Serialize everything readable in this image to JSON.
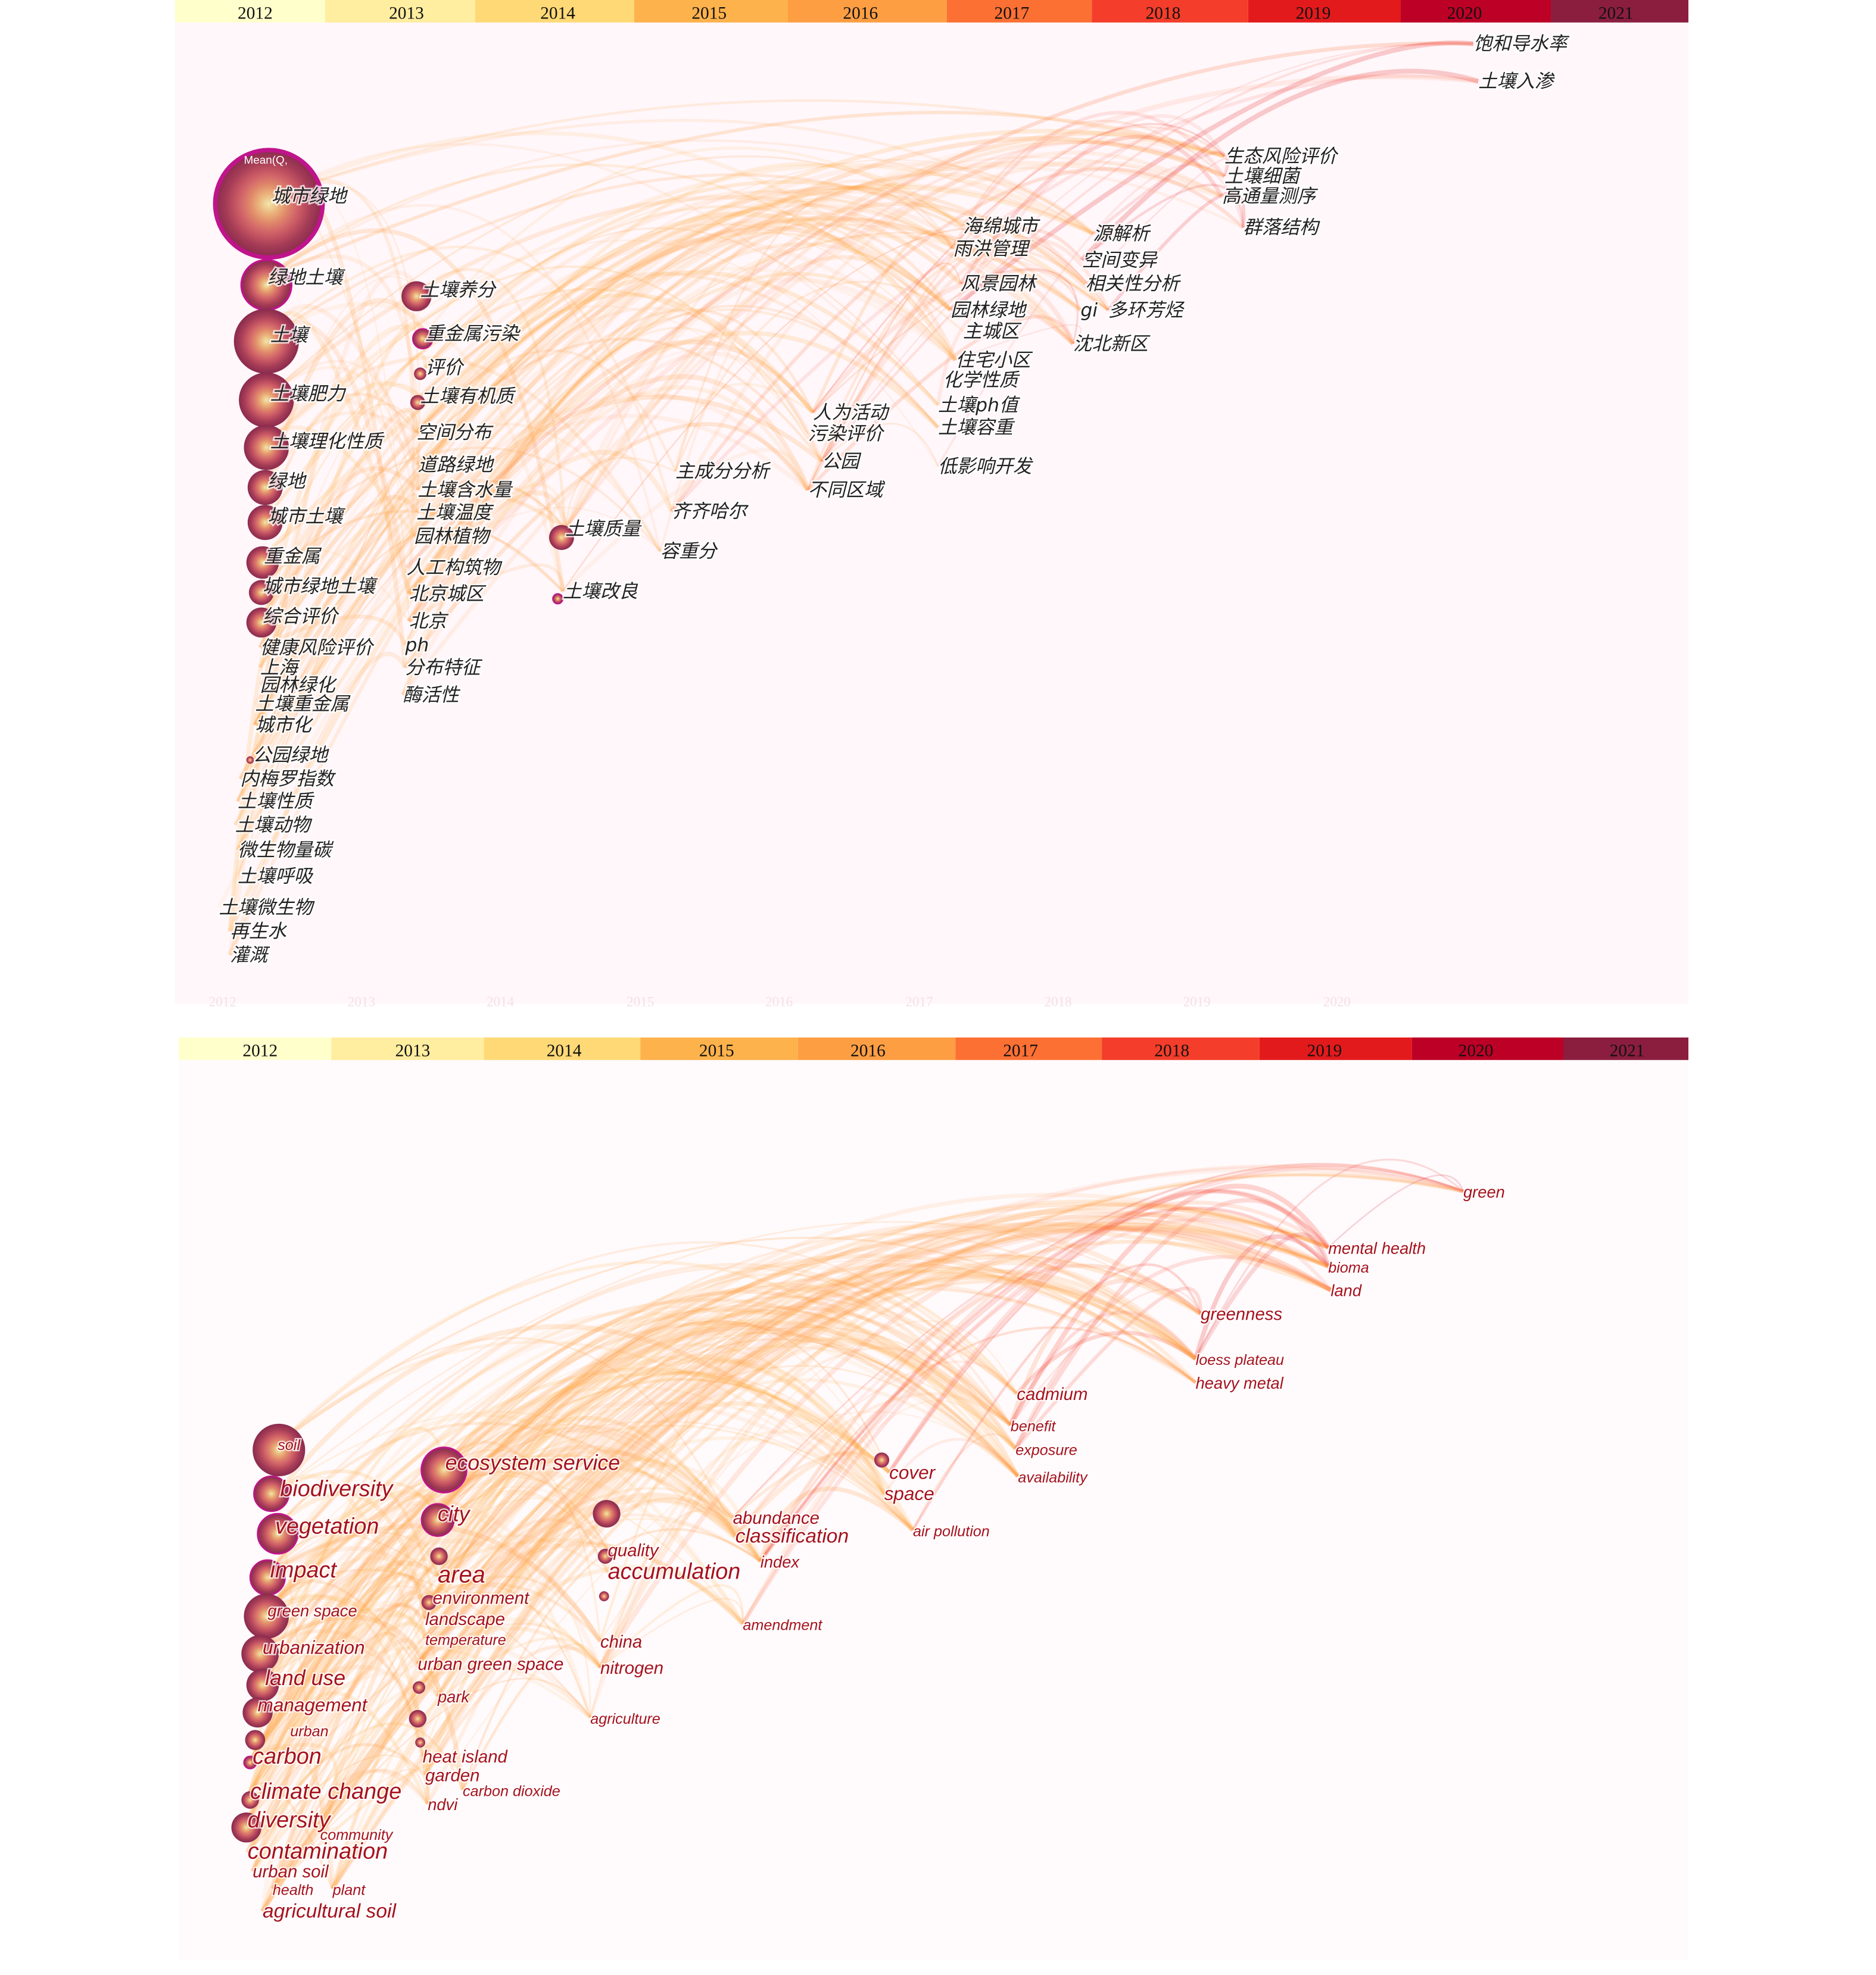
{
  "colors": {
    "years": [
      "#FFFFCC",
      "#FFEDA0",
      "#FED976",
      "#FEB24C",
      "#FD9E43",
      "#FC7034",
      "#F43D2A",
      "#E31A1C",
      "#BD0026",
      "#8B1E3F"
    ],
    "node_ring": "#c0148c",
    "node_core": "#f2e6a8",
    "english_label": "#a5121e",
    "link": "#d9a3b2"
  },
  "top_timeline": {
    "years": [
      "2012",
      "2013",
      "2014",
      "2015",
      "2016",
      "2017",
      "2018",
      "2019",
      "2020",
      "2021"
    ]
  },
  "bottom_timeline": {
    "years": [
      "2012",
      "2013",
      "2014",
      "2015",
      "2016",
      "2017",
      "2018",
      "2019",
      "2020",
      "2021"
    ]
  },
  "top_panel": {
    "legend_text": "Mean(Q,",
    "watermark_years": [
      "2012",
      "2013",
      "2014",
      "2015",
      "2016",
      "2017",
      "2018",
      "2019",
      "2020"
    ],
    "labels": [
      "城市绿地",
      "绿地土壤",
      "土壤",
      "土壤肥力",
      "土壤理化性质",
      "绿地",
      "城市土壤",
      "重金属",
      "城市绿地土壤",
      "综合评价",
      "健康风险评价",
      "上海",
      "园林绿化",
      "土壤重金属",
      "城市化",
      "公园绿地",
      "内梅罗指数",
      "土壤性质",
      "土壤动物",
      "微生物量碳",
      "土壤呼吸",
      "土壤微生物",
      "再生水",
      "灌溉",
      "土壤养分",
      "重金属污染",
      "评价",
      "土壤有机质",
      "空间分布",
      "道路绿地",
      "土壤含水量",
      "土壤温度",
      "园林植物",
      "人工构筑物",
      "北京城区",
      "北京",
      "ph",
      "分布特征",
      "酶活性",
      "土壤质量",
      "土壤改良",
      "主成分分析",
      "齐齐哈尔",
      "容重分",
      "人为活动",
      "污染评价",
      "公园",
      "不同区域",
      "海绵城市",
      "雨洪管理",
      "风景园林",
      "园林绿地",
      "主城区",
      "住宅小区",
      "化学性质",
      "土壤ph值",
      "土壤容重",
      "低影响开发",
      "源解析",
      "空间变异",
      "相关性分析",
      "gi",
      "多环芳烃",
      "沈北新区",
      "生态风险评价",
      "土壤细菌",
      "高通量测序",
      "群落结构",
      "饱和导水率",
      "土壤入渗"
    ]
  },
  "bottom_panel": {
    "labels": [
      "soil",
      "biodiversity",
      "vegetation",
      "impact",
      "green space",
      "urbanization",
      "land use",
      "management",
      "urban",
      "carbon",
      "climate change",
      "diversity",
      "community",
      "contamination",
      "urban soil",
      "health",
      "plant",
      "agricultural soil",
      "ecosystem service",
      "city",
      "area",
      "environment",
      "landscape",
      "temperature",
      "urban green space",
      "park",
      "heat island",
      "garden",
      "ndvi",
      "carbon dioxide",
      "quality",
      "accumulation",
      "china",
      "nitrogen",
      "agriculture",
      "abundance",
      "classification",
      "index",
      "amendment",
      "cover",
      "space",
      "air pollution",
      "cadmium",
      "benefit",
      "exposure",
      "availability",
      "greenness",
      "loess plateau",
      "heavy metal",
      "mental health",
      "bioma",
      "land",
      "green"
    ]
  }
}
